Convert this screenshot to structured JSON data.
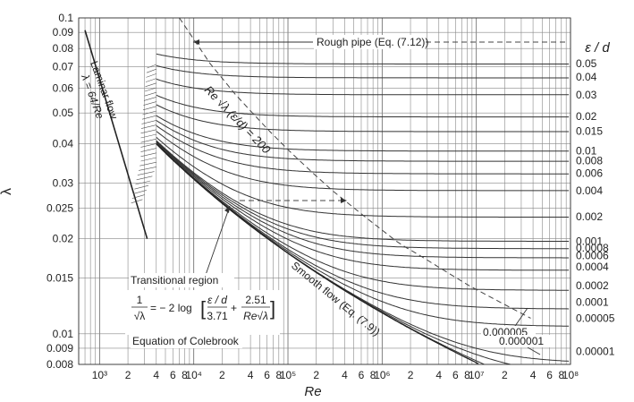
{
  "chart_data": {
    "type": "line",
    "title": "",
    "xlabel": "Re",
    "ylabel": "λ",
    "right_axis_label": "ε / d",
    "xscale": "log",
    "yscale": "log",
    "xlim": [
      600,
      100000000
    ],
    "ylim": [
      0.008,
      0.1
    ],
    "grid": true,
    "x_tick_labels": [
      {
        "value": 1000,
        "label": "10³"
      },
      {
        "value": 2000,
        "label": "2"
      },
      {
        "value": 4000,
        "label": "4"
      },
      {
        "value": 6000,
        "label": "6"
      },
      {
        "value": 8000,
        "label": "8"
      },
      {
        "value": 10000,
        "label": "10⁴"
      },
      {
        "value": 20000,
        "label": "2"
      },
      {
        "value": 40000,
        "label": "4"
      },
      {
        "value": 60000,
        "label": "6"
      },
      {
        "value": 80000,
        "label": "8"
      },
      {
        "value": 100000,
        "label": "10⁵"
      },
      {
        "value": 200000,
        "label": "2"
      },
      {
        "value": 400000,
        "label": "4"
      },
      {
        "value": 600000,
        "label": "6"
      },
      {
        "value": 800000,
        "label": "8"
      },
      {
        "value": 1000000,
        "label": "10⁶"
      },
      {
        "value": 2000000,
        "label": "2"
      },
      {
        "value": 4000000,
        "label": "4"
      },
      {
        "value": 6000000,
        "label": "6"
      },
      {
        "value": 8000000,
        "label": "8"
      },
      {
        "value": 10000000,
        "label": "10⁷"
      },
      {
        "value": 20000000,
        "label": "2"
      },
      {
        "value": 40000000,
        "label": "4"
      },
      {
        "value": 60000000,
        "label": "6"
      },
      {
        "value": 80000000,
        "label": "8"
      },
      {
        "value": 100000000,
        "label": "10⁸"
      }
    ],
    "y_tick_labels": [
      "0.1",
      "0.09",
      "0.08",
      "0.07",
      "0.06",
      "0.05",
      "0.04",
      "0.03",
      "0.025",
      "0.02",
      "0.015",
      "0.01",
      "0.009",
      "0.008"
    ],
    "y_tick_values": [
      0.1,
      0.09,
      0.08,
      0.07,
      0.06,
      0.05,
      0.04,
      0.03,
      0.025,
      0.02,
      0.015,
      0.01,
      0.009,
      0.008
    ],
    "relative_roughness": [
      {
        "label": "0.05",
        "value": 0.05,
        "lambda_rough": 0.0716
      },
      {
        "label": "0.04",
        "value": 0.04,
        "lambda_rough": 0.0649
      },
      {
        "label": "0.03",
        "value": 0.03,
        "lambda_rough": 0.0571
      },
      {
        "label": "0.02",
        "value": 0.02,
        "lambda_rough": 0.0488
      },
      {
        "label": "0.015",
        "value": 0.015,
        "lambda_rough": 0.0438
      },
      {
        "label": "0.01",
        "value": 0.01,
        "lambda_rough": 0.038
      },
      {
        "label": "0.008",
        "value": 0.008,
        "lambda_rough": 0.0353
      },
      {
        "label": "0.006",
        "value": 0.006,
        "lambda_rough": 0.0322
      },
      {
        "label": "0.004",
        "value": 0.004,
        "lambda_rough": 0.0284
      },
      {
        "label": "0.002",
        "value": 0.002,
        "lambda_rough": 0.0235
      },
      {
        "label": "0.001",
        "value": 0.001,
        "lambda_rough": 0.0196
      },
      {
        "label": "0.0008",
        "value": 0.0008,
        "lambda_rough": 0.0187
      },
      {
        "label": "0.0006",
        "value": 0.0006,
        "lambda_rough": 0.0177
      },
      {
        "label": "0.0004",
        "value": 0.0004,
        "lambda_rough": 0.0163
      },
      {
        "label": "0.0002",
        "value": 0.0002,
        "lambda_rough": 0.0142
      },
      {
        "label": "0.0001",
        "value": 0.0001,
        "lambda_rough": 0.0126
      },
      {
        "label": "0.00005",
        "value": 5e-05,
        "lambda_rough": 0.0112
      },
      {
        "label": "0.00001",
        "value": 1e-05,
        "lambda_rough": 0.0088
      }
    ],
    "inline_curve_labels": [
      {
        "label": "0.000005",
        "value": 5e-06
      },
      {
        "label": "0.000001",
        "value": 1e-06
      }
    ],
    "laminar": {
      "formula": "λ = 64/Re",
      "label": "Laminar flow",
      "x": [
        700,
        3200
      ]
    },
    "transitional": {
      "label": "Transitional region",
      "x": [
        2300,
        4000
      ]
    },
    "boundary_line": {
      "label": "Re √λ (ε/d) = 200"
    },
    "annotations": {
      "rough_pipe": "Rough pipe (Eq. (7.12))",
      "smooth_flow": "Smooth flow (Eq. (7.9))",
      "colebrook_caption": "Equation of Colebrook",
      "colebrook_lhs_num": "1",
      "colebrook_lhs_den": "√λ",
      "colebrook_mid": "= − 2 log",
      "colebrook_t1_num": "ε / d",
      "colebrook_t1_den": "3.71",
      "colebrook_plus": "+",
      "colebrook_t2_num": "2.51",
      "colebrook_t2_den": "Re√λ"
    }
  }
}
